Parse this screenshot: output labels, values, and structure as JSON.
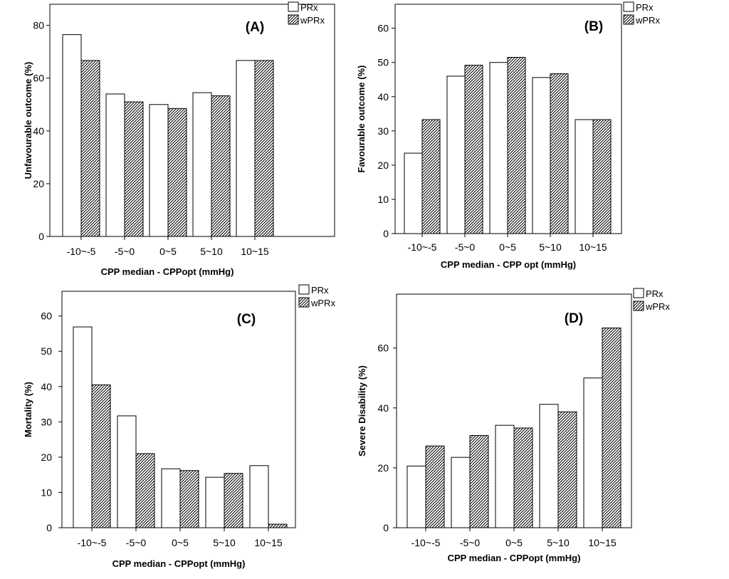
{
  "chart_data": [
    {
      "type": "bar",
      "panel": "(A)",
      "categories": [
        "-10~-5",
        "-5~0",
        "0~5",
        "5~10",
        "10~15"
      ],
      "series": [
        {
          "name": "PRx",
          "values": [
            76.5,
            54,
            50,
            54.5,
            66.7
          ]
        },
        {
          "name": "wPRx",
          "values": [
            66.7,
            51,
            48.5,
            53.3,
            66.7
          ]
        }
      ],
      "yticks": [
        "0",
        "20",
        "40",
        "60",
        "80"
      ],
      "xlabel": "CPP median - CPPopt (mmHg)",
      "ylabel": "Unfavourable outcome (%)",
      "ylim": [
        0,
        88
      ]
    },
    {
      "type": "bar",
      "panel": "(B)",
      "categories": [
        "-10~-5",
        "-5~0",
        "0~5",
        "5~10",
        "10~15"
      ],
      "series": [
        {
          "name": "PRx",
          "values": [
            23.5,
            46,
            50,
            45.6,
            33.3
          ]
        },
        {
          "name": "wPRx",
          "values": [
            33.3,
            49.2,
            51.5,
            46.7,
            33.3
          ]
        }
      ],
      "yticks": [
        "0",
        "10",
        "20",
        "30",
        "40",
        "50",
        "60"
      ],
      "xlabel": "CPP median - CPP opt (mmHg)",
      "ylabel": "Favourable outcome (%)",
      "ylim": [
        0,
        67
      ]
    },
    {
      "type": "bar",
      "panel": "(C)",
      "categories": [
        "-10~-5",
        "-5~0",
        "0~5",
        "5~10",
        "10~15"
      ],
      "series": [
        {
          "name": "PRx",
          "values": [
            56.9,
            31.7,
            16.7,
            14.3,
            17.6
          ]
        },
        {
          "name": "wPRx",
          "values": [
            40.5,
            21,
            16.2,
            15.4,
            1
          ]
        }
      ],
      "yticks": [
        "0",
        "10",
        "20",
        "30",
        "40",
        "50",
        "60"
      ],
      "xlabel": "CPP median - CPPopt (mmHg)",
      "ylabel": "Mortality (%)",
      "ylim": [
        0,
        67
      ]
    },
    {
      "type": "bar",
      "panel": "(D)",
      "categories": [
        "-10~-5",
        "-5~0",
        "0~5",
        "5~10",
        "10~15"
      ],
      "series": [
        {
          "name": "PRx",
          "values": [
            20.6,
            23.5,
            34.2,
            41.2,
            50
          ]
        },
        {
          "name": "wPRx",
          "values": [
            27.3,
            30.8,
            33.3,
            38.7,
            66.7
          ]
        }
      ],
      "yticks": [
        "0",
        "20",
        "40",
        "60"
      ],
      "xlabel": "CPP median - CPPopt (mmHg)",
      "ylabel": "Severe Disability (%)",
      "ylim": [
        0,
        78
      ]
    }
  ]
}
